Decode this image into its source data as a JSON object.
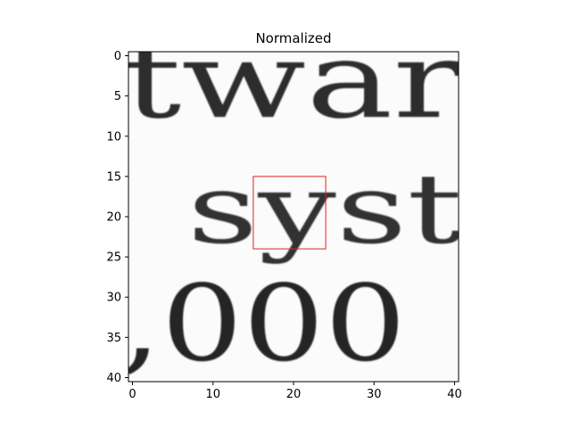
{
  "chart_data": {
    "type": "heatmap",
    "title": "Normalized",
    "xlabel": "",
    "ylabel": "",
    "xlim": [
      -0.5,
      40.5
    ],
    "ylim": [
      40.5,
      -0.5
    ],
    "x_ticks": [
      0,
      10,
      20,
      30,
      40
    ],
    "y_ticks": [
      0,
      5,
      10,
      15,
      20,
      25,
      30,
      35,
      40
    ],
    "colormap": "gray",
    "image_content_text": {
      "row1": "twar",
      "row2": "syst",
      "row3": ",000"
    },
    "annotation_box": {
      "x_range": [
        15,
        24
      ],
      "y_range": [
        15,
        24
      ],
      "color": "#dd2222"
    }
  }
}
